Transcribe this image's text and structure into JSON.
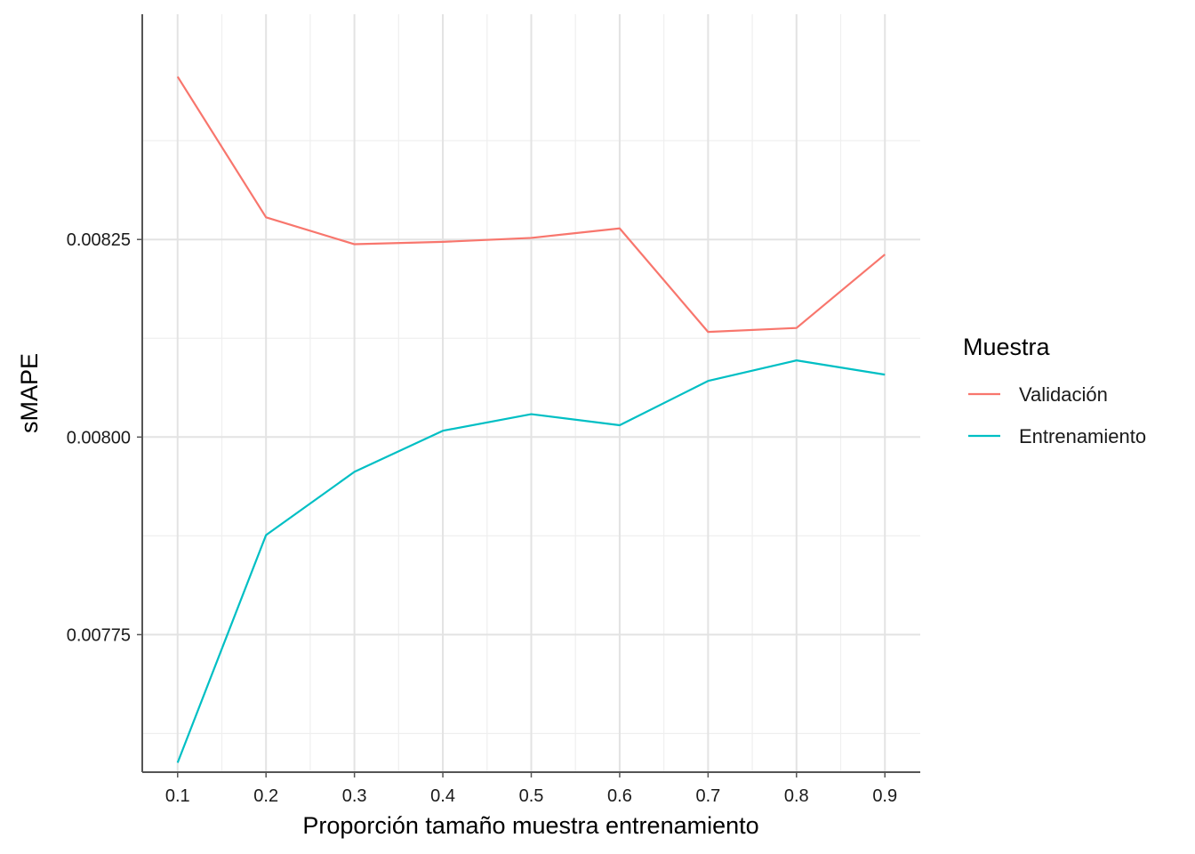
{
  "chart_data": {
    "type": "line",
    "title": "",
    "xlabel": "Proporción tamaño muestra entrenamiento",
    "ylabel": "sMAPE",
    "x": [
      0.1,
      0.2,
      0.3,
      0.4,
      0.5,
      0.6,
      0.7,
      0.8,
      0.9
    ],
    "x_ticks": [
      "0.1",
      "0.2",
      "0.3",
      "0.4",
      "0.5",
      "0.6",
      "0.7",
      "0.8",
      "0.9"
    ],
    "y_ticks": [
      {
        "value": 0.00775,
        "label": "0.00775"
      },
      {
        "value": 0.008,
        "label": "0.00800"
      },
      {
        "value": 0.00825,
        "label": "0.00825"
      }
    ],
    "xlim": [
      0.06,
      0.94
    ],
    "ylim": [
      0.007576,
      0.008535
    ],
    "grid": true,
    "legend": {
      "title": "Muestra",
      "position": "right"
    },
    "series": [
      {
        "name": "Validación",
        "color": "#F8766D",
        "values": [
          0.008456,
          0.008278,
          0.008244,
          0.008247,
          0.008252,
          0.008264,
          0.008133,
          0.008138,
          0.008231
        ]
      },
      {
        "name": "Entrenamiento",
        "color": "#00BFC4",
        "values": [
          0.007588,
          0.007876,
          0.007956,
          0.008008,
          0.008029,
          0.008015,
          0.008071,
          0.008097,
          0.008079
        ]
      }
    ]
  }
}
